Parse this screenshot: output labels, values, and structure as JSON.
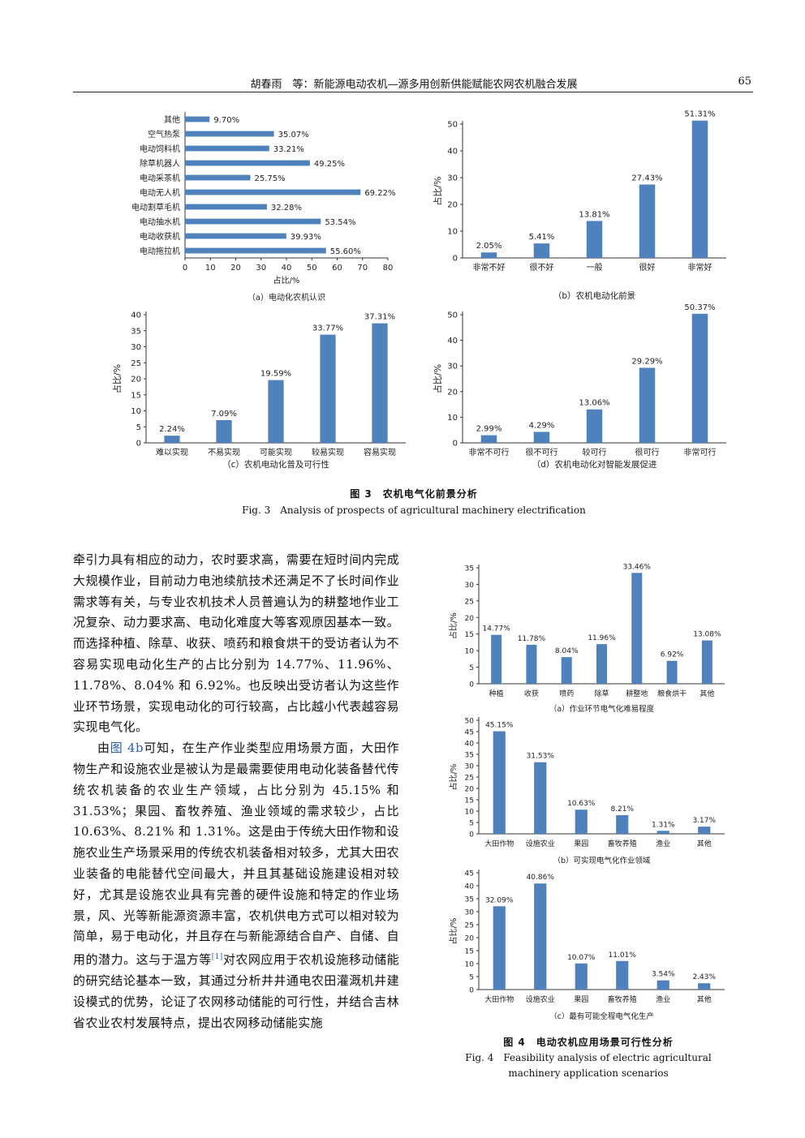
{
  "header": {
    "running_title": "胡春雨　等：新能源电动农机—源多用创新供能赋能农网农机融合发展",
    "page_number": "65"
  },
  "fig3": {
    "caption_cn": "图 3　农机电气化前景分析",
    "caption_en": "Fig. 3　Analysis of prospects of agricultural machinery electrification"
  },
  "fig4": {
    "caption_cn": "图 4　电动农机应用场景可行性分析",
    "caption_en_line1": "Fig. 4　Feasibility analysis of electric agricultural",
    "caption_en_line2": "machinery application scenarios"
  },
  "body": {
    "para1": "牵引力具有相应的动力，农时要求高，需要在短时间内完成大规模作业，目前动力电池续航技术还满足不了长时间作业需求等有关，与专业农机技术人员普遍认为的耕整地作业工况复杂、动力要求高、电动化难度大等客观原因基本一致。而选择种植、除草、收获、喷药和粮食烘干的受访者认为不容易实现电动化生产的占比分别为 14.77%、11.96%、11.78%、8.04% 和 6.92%。也反映出受访者认为这些作业环节场景，实现电动化的可行较高，占比越小代表越容易实现电气化。",
    "para2_pre": "由",
    "para2_ref": "图 4b",
    "para2_mid": "可知，在生产作业类型应用场景方面，大田作物生产和设施农业是被认为是最需要使用电动化装备替代传统农机装备的农业生产领域，占比分别为 45.15% 和 31.53%；果园、畜牧养殖、渔业领域的需求较少，占比 10.63%、8.21% 和 1.31%。这是由于传统大田作物和设施农业生产场景采用的传统农机装备相对较多，尤其大田农业装备的电能替代空间最大，并且其基础设施建设相对较好，尤其是设施农业具有完善的硬件设施和特定的作业场景，风、光等新能源资源丰富，农机供电方式可以相对较为简单，易于电动化，并且存在与新能源结合自产、自储、自用的潜力。这与于温方等",
    "para2_cite": "[1]",
    "para2_post": "对农网应用于农机设施移动储能的研究结论基本一致，其通过分析井井通电农田灌溉机井建设模式的优势，论证了农网移动储能的可行性，并结合吉林省农业农村发展特点，提出农网移动储能实施"
  },
  "colors": {
    "bar": "#4f81bd",
    "axis": "#333333",
    "text": "#222222"
  },
  "chart_data": [
    {
      "id": "fig3a",
      "type": "bar",
      "orientation": "horizontal",
      "caption": "（a）电动化农机认识",
      "categories": [
        "其他",
        "空气热泵",
        "电动饲料机",
        "除草机器人",
        "电动采茶机",
        "电动无人机",
        "电动割草毛机",
        "电动抽水机",
        "电动收获机",
        "电动拖拉机"
      ],
      "values": [
        9.7,
        35.07,
        33.21,
        49.25,
        25.75,
        69.22,
        32.28,
        53.54,
        39.93,
        55.6
      ],
      "labels": [
        "9.70%",
        "35.07%",
        "33.21%",
        "49.25%",
        "25.75%",
        "69.22%",
        "32.28%",
        "53.54%",
        "39.93%",
        "55.60%"
      ],
      "xlabel": "占比/%",
      "ylabel": "",
      "xlim": [
        0,
        80
      ],
      "ticks": [
        0,
        10,
        20,
        30,
        40,
        50,
        60,
        70,
        80
      ],
      "grid": false
    },
    {
      "id": "fig3b",
      "type": "bar",
      "caption": "（b）农机电动化前景",
      "categories": [
        "非常不好",
        "很不好",
        "一般",
        "很好",
        "非常好"
      ],
      "values": [
        2.05,
        5.41,
        13.81,
        27.43,
        51.31
      ],
      "labels": [
        "2.05%",
        "5.41%",
        "13.81%",
        "27.43%",
        "51.31%"
      ],
      "xlabel": "",
      "ylabel": "占比/%",
      "ylim": [
        0,
        50
      ],
      "ticks": [
        0,
        10,
        20,
        30,
        40,
        50
      ],
      "grid": false
    },
    {
      "id": "fig3c",
      "type": "bar",
      "caption": "（c）农机电动化普及可行性",
      "categories": [
        "难以实现",
        "不易实现",
        "可能实现",
        "较易实现",
        "容易实现"
      ],
      "values": [
        2.24,
        7.09,
        19.59,
        33.77,
        37.31
      ],
      "labels": [
        "2.24%",
        "7.09%",
        "19.59%",
        "33.77%",
        "37.31%"
      ],
      "xlabel": "",
      "ylabel": "占比/%",
      "ylim": [
        0,
        40
      ],
      "ticks": [
        0,
        5,
        10,
        15,
        20,
        25,
        30,
        35,
        40
      ],
      "grid": false
    },
    {
      "id": "fig3d",
      "type": "bar",
      "caption": "（d）农机电动化对智能发展促进",
      "categories": [
        "非常不可行",
        "很不可行",
        "较可行",
        "很可行",
        "非常可行"
      ],
      "values": [
        2.99,
        4.29,
        13.06,
        29.29,
        50.37
      ],
      "labels": [
        "2.99%",
        "4.29%",
        "13.06%",
        "29.29%",
        "50.37%"
      ],
      "xlabel": "",
      "ylabel": "占比/%",
      "ylim": [
        0,
        50
      ],
      "ticks": [
        0,
        10,
        20,
        30,
        40,
        50
      ],
      "grid": false
    },
    {
      "id": "fig4a",
      "type": "bar",
      "caption": "（a）作业环节电气化难易程度",
      "categories": [
        "种植",
        "收获",
        "喷药",
        "除草",
        "耕整地",
        "粮食烘干",
        "其他"
      ],
      "values": [
        14.77,
        11.78,
        8.04,
        11.96,
        33.46,
        6.92,
        13.08
      ],
      "labels": [
        "14.77%",
        "11.78%",
        "8.04%",
        "11.96%",
        "33.46%",
        "6.92%",
        "13.08%"
      ],
      "xlabel": "",
      "ylabel": "占比/%",
      "ylim": [
        0,
        35
      ],
      "ticks": [
        0,
        5,
        10,
        15,
        20,
        25,
        30,
        35
      ],
      "grid": false
    },
    {
      "id": "fig4b",
      "type": "bar",
      "caption": "（b）可实现电气化作业领域",
      "categories": [
        "大田作物",
        "设施农业",
        "果园",
        "畜牧养殖",
        "渔业",
        "其他"
      ],
      "values": [
        45.15,
        31.53,
        10.63,
        8.21,
        1.31,
        3.17
      ],
      "labels": [
        "45.15%",
        "31.53%",
        "10.63%",
        "8.21%",
        "1.31%",
        "3.17%"
      ],
      "xlabel": "",
      "ylabel": "占比/%",
      "ylim": [
        0,
        50
      ],
      "ticks": [
        0,
        5,
        10,
        15,
        20,
        25,
        30,
        35,
        40,
        45,
        50
      ],
      "grid": false
    },
    {
      "id": "fig4c",
      "type": "bar",
      "caption": "（c）最有可能全程电气化生产",
      "categories": [
        "大田作物",
        "设施农业",
        "果园",
        "畜牧养殖",
        "渔业",
        "其他"
      ],
      "values": [
        32.09,
        40.86,
        10.07,
        11.01,
        3.54,
        2.43
      ],
      "labels": [
        "32.09%",
        "40.86%",
        "10.07%",
        "11.01%",
        "3.54%",
        "2.43%"
      ],
      "xlabel": "",
      "ylabel": "占比/%",
      "ylim": [
        0,
        45
      ],
      "ticks": [
        0,
        5,
        10,
        15,
        20,
        25,
        30,
        35,
        40,
        45
      ],
      "grid": false
    }
  ]
}
